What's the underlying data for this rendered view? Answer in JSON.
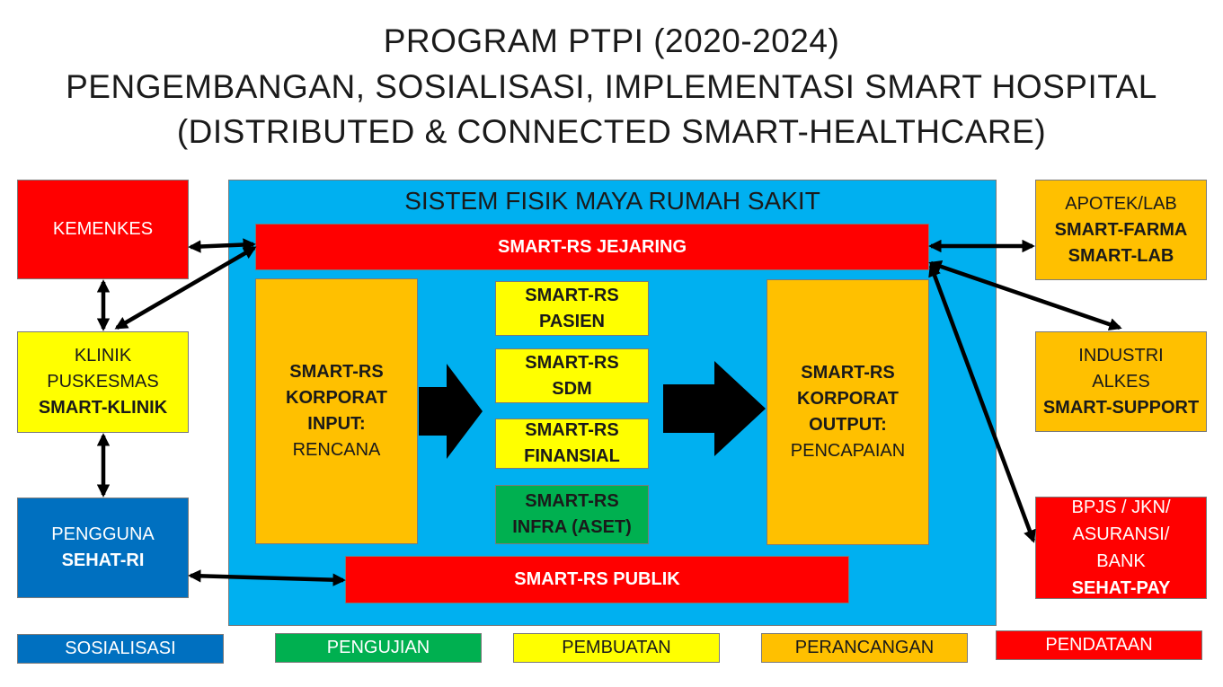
{
  "title": {
    "line1": "PROGRAM PTPI (2020-2024)",
    "line2": "PENGEMBANGAN, SOSIALISASI, IMPLEMENTASI SMART HOSPITAL",
    "line3": "(DISTRIBUTED & CONNECTED SMART-HEALTHCARE)"
  },
  "system": {
    "title": "SISTEM FISIK MAYA RUMAH SAKIT",
    "jejaring": "SMART-RS JEJARING",
    "publik": "SMART-RS PUBLIK",
    "input": {
      "l1": "SMART-RS",
      "l2": "KORPORAT",
      "l3": "INPUT:",
      "l4": "RENCANA"
    },
    "output": {
      "l1": "SMART-RS",
      "l2": "KORPORAT",
      "l3": "OUTPUT:",
      "l4": "PENCAPAIAN"
    },
    "modules": [
      {
        "l1": "SMART-RS",
        "l2": "PASIEN"
      },
      {
        "l1": "SMART-RS",
        "l2": "SDM"
      },
      {
        "l1": "SMART-RS",
        "l2": "FINANSIAL"
      },
      {
        "l1": "SMART-RS",
        "l2": "INFRA (ASET)"
      }
    ]
  },
  "left": {
    "kemenkes": "KEMENKES",
    "klinik": {
      "l1": "KLINIK",
      "l2": "PUSKESMAS",
      "l3": "SMART-KLINIK"
    },
    "pengguna": {
      "l1": "PENGGUNA",
      "l2": "SEHAT-RI"
    }
  },
  "right": {
    "apotek": {
      "l1": "APOTEK/LAB",
      "l2": "SMART-FARMA",
      "l3": "SMART-LAB"
    },
    "industri": {
      "l1": "INDUSTRI",
      "l2": "ALKES",
      "l3": "SMART-SUPPORT"
    },
    "bpjs": {
      "l1": "BPJS / JKN/",
      "l2": "ASURANSI/",
      "l3": "BANK",
      "l4": "SEHAT-PAY"
    }
  },
  "legend": {
    "sosialisasi": "SOSIALISASI",
    "pengujian": "PENGUJIAN",
    "pembuatan": "PEMBUATAN",
    "perancangan": "PERANCANGAN",
    "pendataan": "PENDATAAN"
  },
  "colors": {
    "red": "#ff0000",
    "yellow": "#ffff00",
    "orange": "#ffc000",
    "blue": "#0070c0",
    "green": "#00b050",
    "cyan": "#00b0f0"
  }
}
